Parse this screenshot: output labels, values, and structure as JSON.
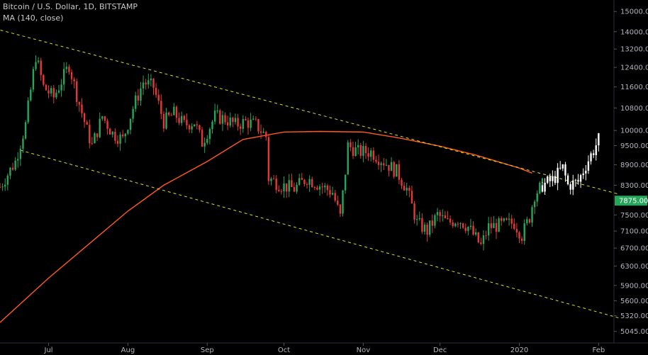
{
  "header": {
    "title": "Bitcoin / U.S. Dollar, 1D, BITSTAMP",
    "indicator": "MA (140, close)"
  },
  "colors": {
    "background": "#000000",
    "up": "#26a65b",
    "down": "#e53935",
    "projection": "#ffffff",
    "ma": "#ff5a1f",
    "channel": "#d9e021",
    "price_tag": "#26a65b"
  },
  "chart_data": {
    "type": "candlestick",
    "title": "Bitcoin / U.S. Dollar, 1D, BITSTAMP",
    "y_scale": "log",
    "ylim": [
      4850,
      15600
    ],
    "xlim": [
      "2019-06-12",
      "2020-02-07"
    ],
    "y_ticks": [
      "15000.00",
      "14000.00",
      "13200.00",
      "12400.00",
      "11600.00",
      "10800.00",
      "10000.00",
      "9500.00",
      "8900.00",
      "8300.00",
      "7500.00",
      "7100.00",
      "6700.00",
      "6300.00",
      "5900.00",
      "5600.00",
      "5320.00",
      "5045.00"
    ],
    "x_ticks": [
      {
        "label": "Jul",
        "date": "2019-07-01"
      },
      {
        "label": "Aug",
        "date": "2019-08-01"
      },
      {
        "label": "Sep",
        "date": "2019-09-01"
      },
      {
        "label": "Oct",
        "date": "2019-10-01"
      },
      {
        "label": "Nov",
        "date": "2019-11-01"
      },
      {
        "label": "Dec",
        "date": "2019-12-01"
      },
      {
        "label": "2020",
        "date": "2020-01-01"
      },
      {
        "label": "Feb",
        "date": "2020-02-01"
      }
    ],
    "last_price": "7875.00",
    "indicator": "MA (140, close)",
    "ma_line": {
      "start_date": "2019-06-12",
      "points": [
        [
          "2019-06-12",
          5200
        ],
        [
          "2019-07-01",
          6050
        ],
        [
          "2019-08-01",
          7600
        ],
        [
          "2019-08-15",
          8300
        ],
        [
          "2019-09-01",
          9000
        ],
        [
          "2019-09-15",
          9700
        ],
        [
          "2019-10-01",
          9950
        ],
        [
          "2019-10-15",
          9970
        ],
        [
          "2019-11-01",
          9950
        ],
        [
          "2019-11-15",
          9750
        ],
        [
          "2019-12-01",
          9480
        ],
        [
          "2019-12-15",
          9200
        ],
        [
          "2020-01-01",
          8800
        ],
        [
          "2020-01-06",
          8650
        ]
      ]
    },
    "channel": {
      "upper": [
        [
          "2019-06-10",
          14150
        ],
        [
          "2020-02-09",
          8050
        ]
      ],
      "lower": [
        [
          "2019-06-20",
          9350
        ],
        [
          "2020-02-09",
          5280
        ]
      ]
    },
    "candles_path": [
      [
        "2019-06-12",
        8250
      ],
      [
        "2019-06-18",
        9000
      ],
      [
        "2019-06-22",
        10200
      ],
      [
        "2019-06-26",
        12900
      ],
      [
        "2019-06-29",
        11600
      ],
      [
        "2019-07-03",
        11200
      ],
      [
        "2019-07-09",
        12500
      ],
      [
        "2019-07-12",
        11300
      ],
      [
        "2019-07-16",
        10000
      ],
      [
        "2019-07-18",
        9500
      ],
      [
        "2019-07-22",
        10500
      ],
      [
        "2019-07-26",
        9900
      ],
      [
        "2019-07-30",
        9700
      ],
      [
        "2019-08-03",
        10800
      ],
      [
        "2019-08-07",
        11800
      ],
      [
        "2019-08-11",
        11600
      ],
      [
        "2019-08-15",
        10300
      ],
      [
        "2019-08-19",
        10600
      ],
      [
        "2019-08-23",
        10200
      ],
      [
        "2019-08-27",
        10300
      ],
      [
        "2019-08-30",
        9600
      ],
      [
        "2019-09-04",
        10500
      ],
      [
        "2019-09-08",
        10400
      ],
      [
        "2019-09-12",
        10200
      ],
      [
        "2019-09-16",
        10300
      ],
      [
        "2019-09-20",
        10200
      ],
      [
        "2019-09-24",
        9800
      ],
      [
        "2019-09-25",
        8500
      ],
      [
        "2019-09-30",
        8300
      ],
      [
        "2019-10-05",
        8200
      ],
      [
        "2019-10-10",
        8500
      ],
      [
        "2019-10-15",
        8300
      ],
      [
        "2019-10-20",
        8100
      ],
      [
        "2019-10-23",
        7450
      ],
      [
        "2019-10-25",
        8700
      ],
      [
        "2019-10-26",
        9500
      ],
      [
        "2019-10-30",
        9300
      ],
      [
        "2019-11-04",
        9300
      ],
      [
        "2019-11-09",
        9000
      ],
      [
        "2019-11-14",
        8700
      ],
      [
        "2019-11-18",
        8200
      ],
      [
        "2019-11-22",
        7300
      ],
      [
        "2019-11-26",
        7100
      ],
      [
        "2019-11-30",
        7500
      ],
      [
        "2019-12-04",
        7300
      ],
      [
        "2019-12-08",
        7400
      ],
      [
        "2019-12-12",
        7200
      ],
      [
        "2019-12-17",
        6750
      ],
      [
        "2019-12-20",
        7200
      ],
      [
        "2019-12-25",
        7250
      ],
      [
        "2019-12-30",
        7300
      ],
      [
        "2020-01-02",
        7000
      ],
      [
        "2020-01-05",
        7450
      ],
      [
        "2020-01-07",
        8050
      ],
      [
        "2020-01-10",
        8300
      ]
    ],
    "projection_path": [
      [
        "2020-01-10",
        8300
      ],
      [
        "2020-01-14",
        8450
      ],
      [
        "2020-01-18",
        8800
      ],
      [
        "2020-01-20",
        8300
      ],
      [
        "2020-01-24",
        8400
      ],
      [
        "2020-01-27",
        8900
      ],
      [
        "2020-01-30",
        9350
      ],
      [
        "2020-02-01",
        9700
      ]
    ]
  }
}
